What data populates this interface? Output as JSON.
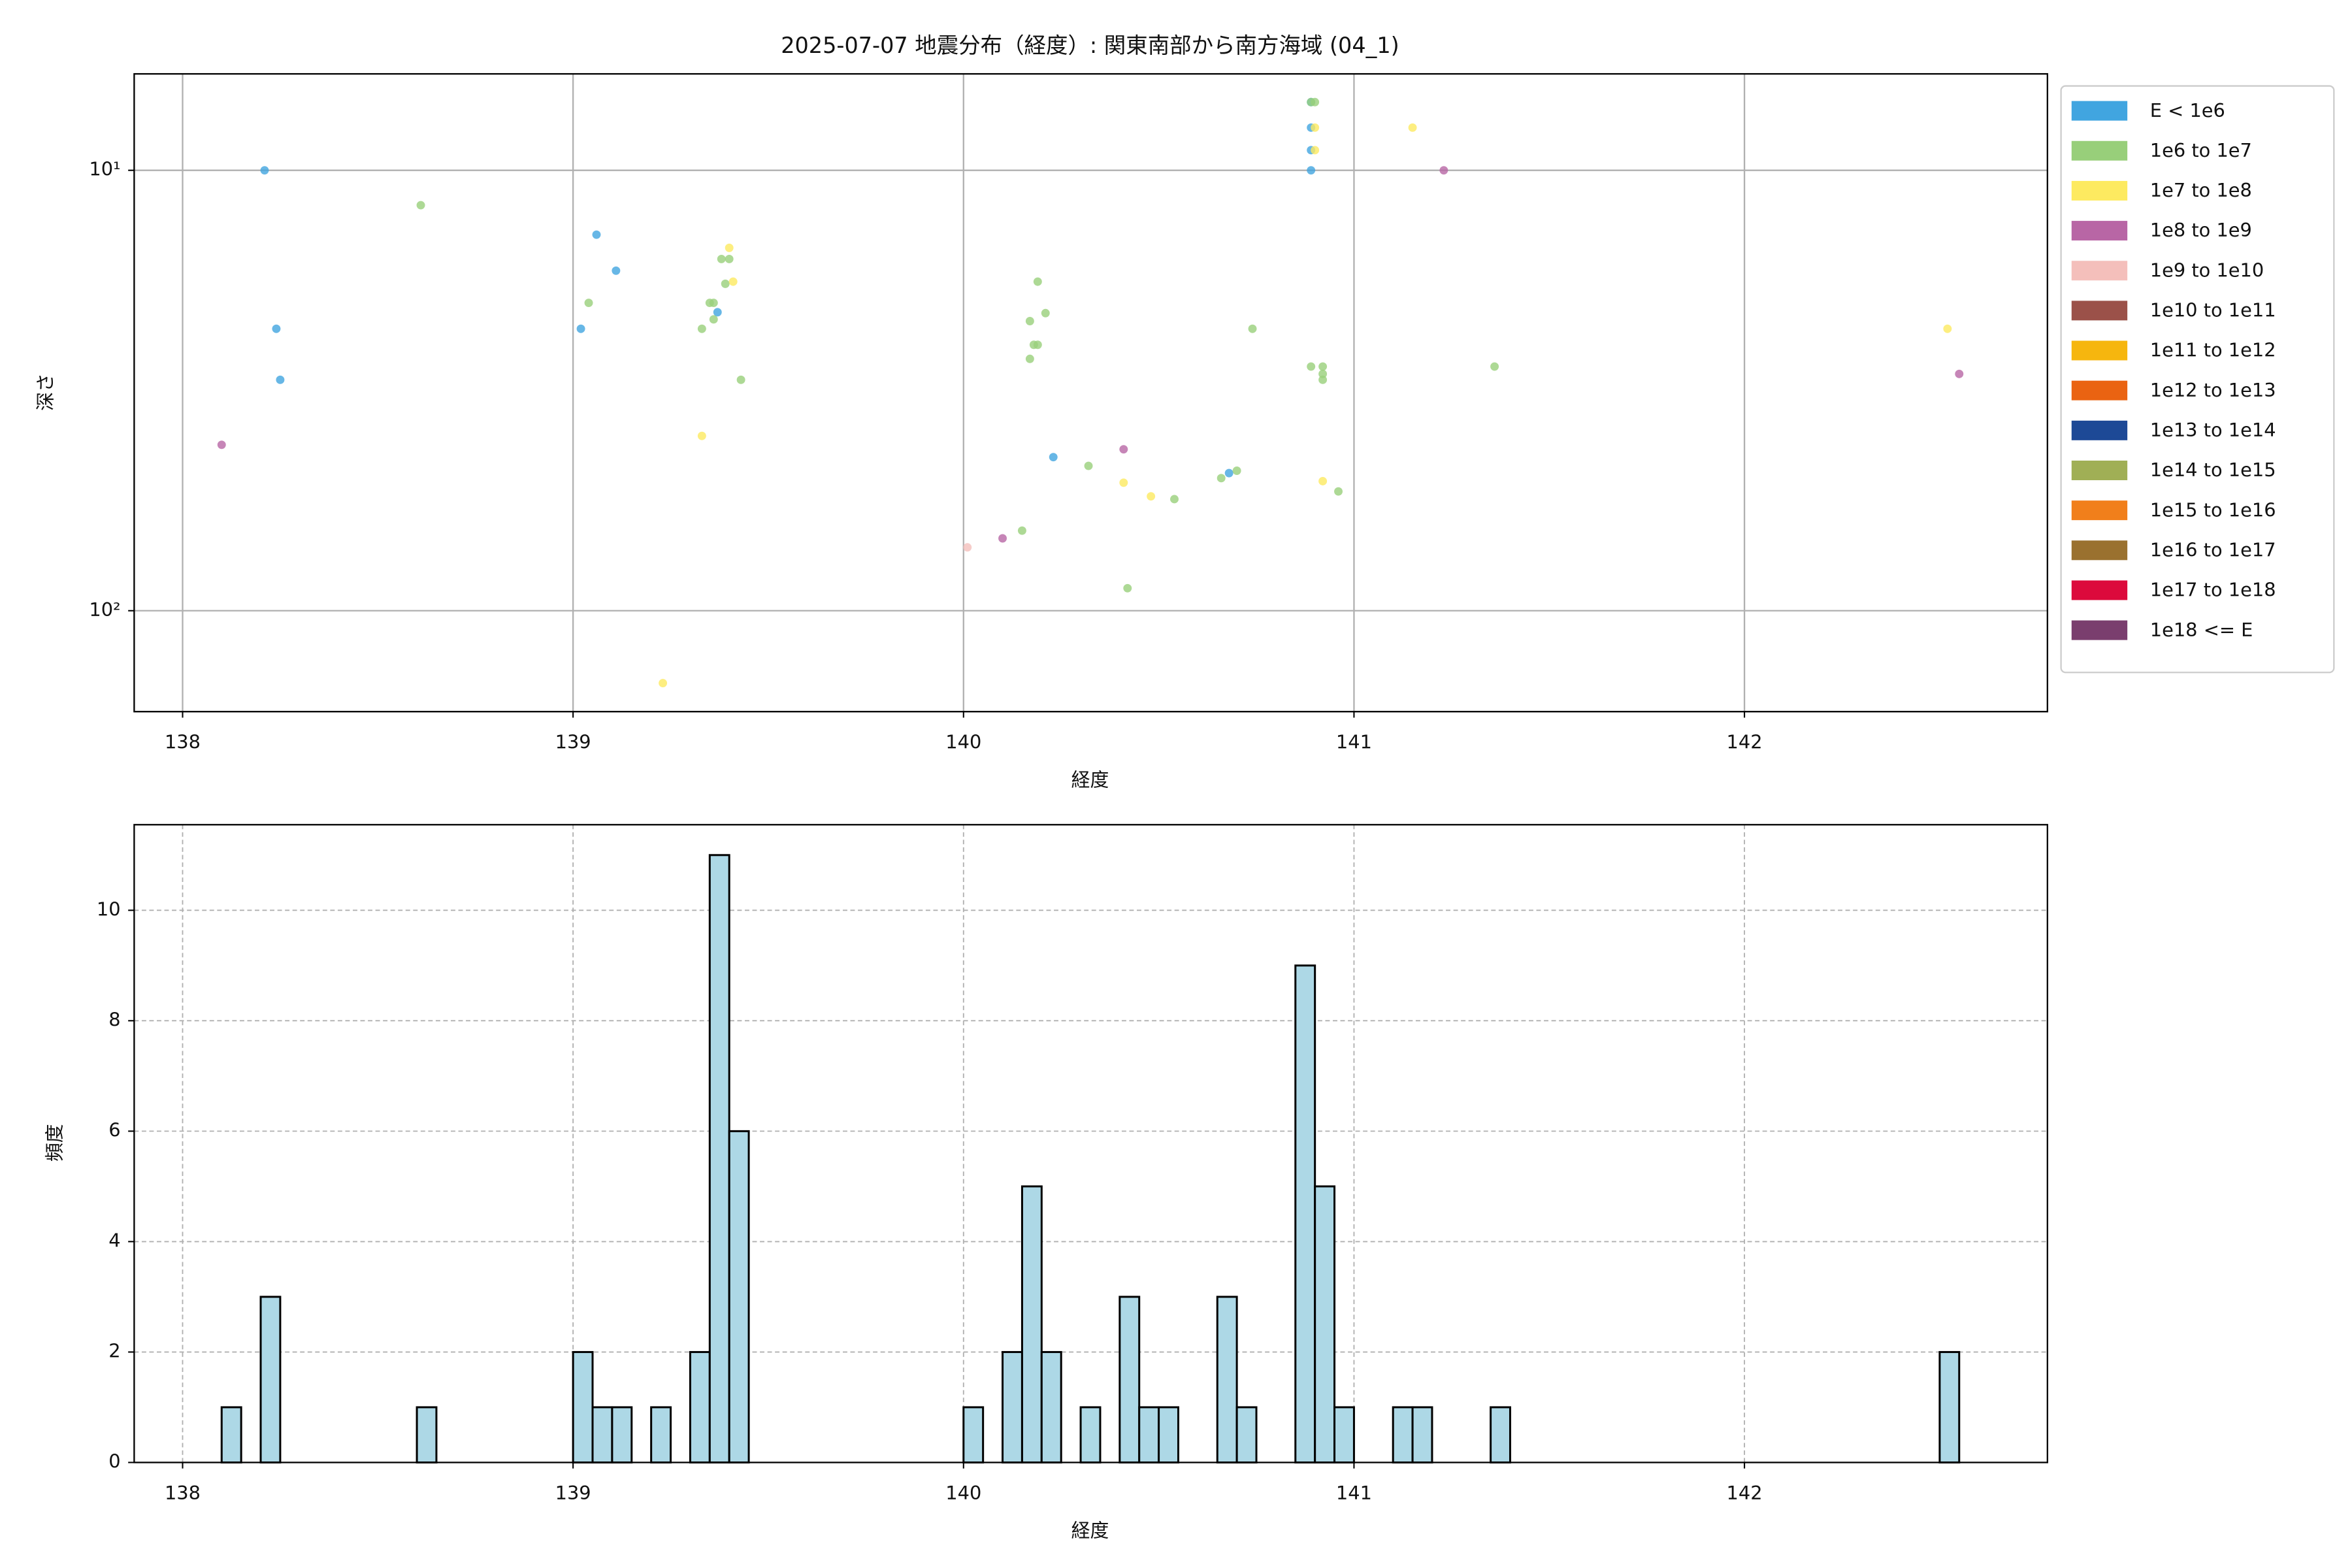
{
  "chart_data": [
    {
      "type": "scatter",
      "title": "2025-07-07 地震分布（経度）: 関東南部から南方海域 (04_1)",
      "xlabel": "経度",
      "ylabel": "深さ",
      "xlim": [
        137.876,
        142.776
      ],
      "ylim": [
        6.04,
        169.5
      ],
      "y_log": true,
      "y_inverted": true,
      "xticks": [
        138,
        139,
        140,
        141,
        142
      ],
      "yticks": [
        {
          "value": 10,
          "label": "10¹"
        },
        {
          "value": 100,
          "label": "10²"
        }
      ],
      "grid": true,
      "grid_style": "solid",
      "legend": "outside upper right",
      "series": [
        {
          "name": "E < 1e6",
          "color": "#41a5e0",
          "x": [
            138.21,
            138.24,
            138.25,
            139.06,
            139.11,
            139.02,
            139.37,
            140.23,
            140.68,
            140.89,
            140.89,
            140.89,
            140.89
          ],
          "y": [
            10,
            22.9,
            29.9,
            14.0,
            16.9,
            22.9,
            21.0,
            44.8,
            48.7,
            8.0,
            9.0,
            10,
            7.0
          ]
        },
        {
          "name": "1e6 to 1e7",
          "color": "#98cf7a",
          "x": [
            138.61,
            139.04,
            139.33,
            139.35,
            139.36,
            139.36,
            139.38,
            139.39,
            139.4,
            139.43,
            140.19,
            140.21,
            140.17,
            140.18,
            140.19,
            140.17,
            140.15,
            140.32,
            140.42,
            140.54,
            140.66,
            140.7,
            140.74,
            140.89,
            140.92,
            140.92,
            140.92,
            140.96,
            141.36,
            140.89,
            140.9
          ],
          "y": [
            12.0,
            20.0,
            22.9,
            20.0,
            20.0,
            21.8,
            15.9,
            18.1,
            15.9,
            29.9,
            17.9,
            21.1,
            22.0,
            24.9,
            24.9,
            26.8,
            65.8,
            46.9,
            88.9,
            55.8,
            50.0,
            48.1,
            22.9,
            27.9,
            27.9,
            29.0,
            29.9,
            53.6,
            27.9,
            7.0,
            7.0
          ]
        },
        {
          "name": "1e7 to 1e8",
          "color": "#fdea60",
          "x": [
            139.23,
            139.33,
            139.4,
            139.41,
            140.41,
            140.48,
            140.92,
            141.15,
            140.9,
            140.9,
            142.52
          ],
          "y": [
            146,
            40.1,
            15.0,
            17.9,
            51.2,
            55.0,
            50.8,
            8.0,
            8.0,
            9.0,
            22.9
          ]
        },
        {
          "name": "1e8 to 1e9",
          "color": "#b866a5",
          "x": [
            138.1,
            140.41,
            140.1,
            141.23,
            142.55
          ],
          "y": [
            42.0,
            43.0,
            68.5,
            10,
            29.0
          ]
        },
        {
          "name": "1e9 to 1e10",
          "color": "#f4bfbb",
          "x": [
            140.01
          ],
          "y": [
            71.8
          ]
        },
        {
          "name": "1e10 to 1e11",
          "color": "#9b5149",
          "x": [],
          "y": []
        },
        {
          "name": "1e11 to 1e12",
          "color": "#f6b60e",
          "x": [],
          "y": []
        },
        {
          "name": "1e12 to 1e13",
          "color": "#ea6312",
          "x": [],
          "y": []
        },
        {
          "name": "1e13 to 1e14",
          "color": "#1d4996",
          "x": [],
          "y": []
        },
        {
          "name": "1e14 to 1e15",
          "color": "#a0af55",
          "x": [],
          "y": []
        },
        {
          "name": "1e15 to 1e16",
          "color": "#f17f1b",
          "x": [],
          "y": []
        },
        {
          "name": "1e16 to 1e17",
          "color": "#9a712f",
          "x": [],
          "y": []
        },
        {
          "name": "1e17 to 1e18",
          "color": "#dc0a3c",
          "x": [],
          "y": []
        },
        {
          "name": "1e18 <= E",
          "color": "#7a3e6e",
          "x": [],
          "y": []
        }
      ]
    },
    {
      "type": "histogram",
      "xlabel": "経度",
      "ylabel": "頻度",
      "xlim": [
        137.876,
        142.776
      ],
      "ylim": [
        0,
        11.55
      ],
      "xticks": [
        138,
        139,
        140,
        141,
        142
      ],
      "yticks": [
        0,
        2,
        4,
        6,
        8,
        10
      ],
      "grid": true,
      "grid_style": "dashed",
      "color": "#add8e6",
      "edgecolor": "#000000",
      "bins": [
        138.1,
        138.15,
        138.2,
        138.25,
        138.3,
        138.35,
        138.4,
        138.45,
        138.5,
        138.55,
        138.6,
        138.65,
        138.7,
        138.75,
        138.8,
        138.85,
        138.9,
        138.95,
        139,
        139.05,
        139.1,
        139.15,
        139.2,
        139.25,
        139.3,
        139.35,
        139.4,
        139.45,
        139.5,
        139.55,
        139.6,
        139.65,
        139.7,
        139.75,
        139.8,
        139.85,
        139.9,
        139.95,
        140,
        140.05,
        140.1,
        140.15,
        140.2,
        140.25,
        140.3,
        140.35,
        140.4,
        140.45,
        140.5,
        140.55,
        140.6,
        140.65,
        140.7,
        140.75,
        140.8,
        140.85,
        140.9,
        140.95,
        141,
        141.05,
        141.1,
        141.15,
        141.2,
        141.25,
        141.3,
        141.35,
        141.4,
        141.45,
        141.5,
        141.55,
        141.6,
        141.65,
        141.7,
        141.75,
        141.8,
        141.85,
        141.9,
        141.95,
        142,
        142.05,
        142.1,
        142.15,
        142.2,
        142.25,
        142.3,
        142.35,
        142.4,
        142.45,
        142.5,
        142.55
      ],
      "values": [
        1,
        0,
        3,
        0,
        0,
        0,
        0,
        0,
        0,
        0,
        1,
        0,
        0,
        0,
        0,
        0,
        0,
        0,
        2,
        1,
        1,
        0,
        1,
        0,
        2,
        11,
        6,
        0,
        0,
        0,
        0,
        0,
        0,
        0,
        0,
        0,
        0,
        0,
        1,
        0,
        2,
        5,
        2,
        0,
        1,
        0,
        3,
        1,
        1,
        0,
        0,
        3,
        1,
        0,
        0,
        9,
        5,
        1,
        0,
        0,
        1,
        1,
        0,
        0,
        0,
        1,
        0,
        0,
        0,
        0,
        0,
        0,
        0,
        0,
        0,
        0,
        0,
        0,
        0,
        0,
        0,
        0,
        0,
        0,
        0,
        0,
        0,
        0,
        2
      ]
    }
  ]
}
